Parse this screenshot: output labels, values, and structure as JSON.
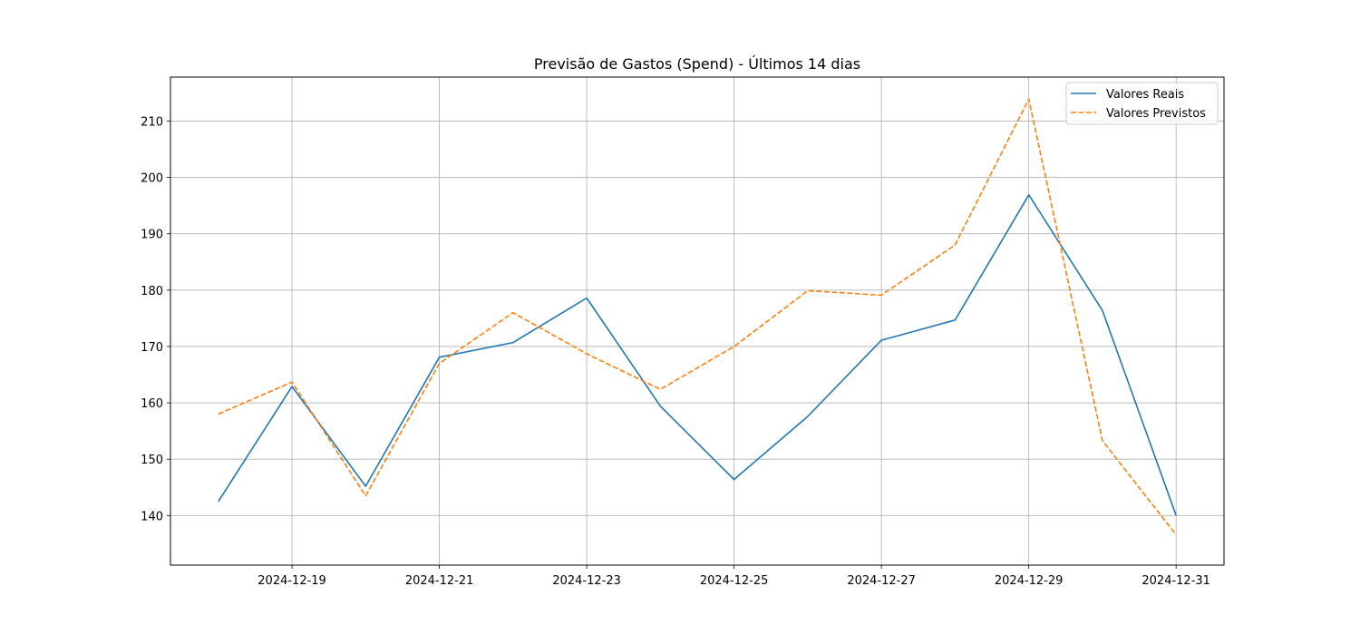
{
  "chart_data": {
    "type": "line",
    "title": "Previsão de Gastos (Spend) - Últimos 14 dias",
    "xlabel": "",
    "ylabel": "",
    "x": [
      "2024-12-18",
      "2024-12-19",
      "2024-12-20",
      "2024-12-21",
      "2024-12-22",
      "2024-12-23",
      "2024-12-24",
      "2024-12-25",
      "2024-12-26",
      "2024-12-27",
      "2024-12-28",
      "2024-12-29",
      "2024-12-30",
      "2024-12-31"
    ],
    "x_ticks": [
      "2024-12-19",
      "2024-12-21",
      "2024-12-23",
      "2024-12-25",
      "2024-12-27",
      "2024-12-29",
      "2024-12-31"
    ],
    "xlim": [
      "2024-12-17T08:24",
      "2024-12-31T15:36"
    ],
    "ylim": [
      131.2,
      217.8
    ],
    "y_ticks": [
      140,
      150,
      160,
      170,
      180,
      190,
      200,
      210
    ],
    "grid": true,
    "legend_position": "top-right",
    "series": [
      {
        "name": "Valores Reais",
        "color": "#1f77b4",
        "style": "solid",
        "values": [
          142.5,
          162.9,
          145.2,
          168.1,
          170.7,
          178.6,
          159.4,
          146.4,
          157.6,
          171.1,
          174.7,
          196.9,
          176.4,
          140.0
        ]
      },
      {
        "name": "Valores Previstos",
        "color": "#ff7f0e",
        "style": "dashed",
        "values": [
          158.0,
          163.7,
          143.5,
          167.0,
          176.0,
          168.7,
          162.4,
          170.0,
          179.9,
          179.1,
          188.0,
          213.9,
          153.3,
          136.6
        ]
      }
    ]
  }
}
